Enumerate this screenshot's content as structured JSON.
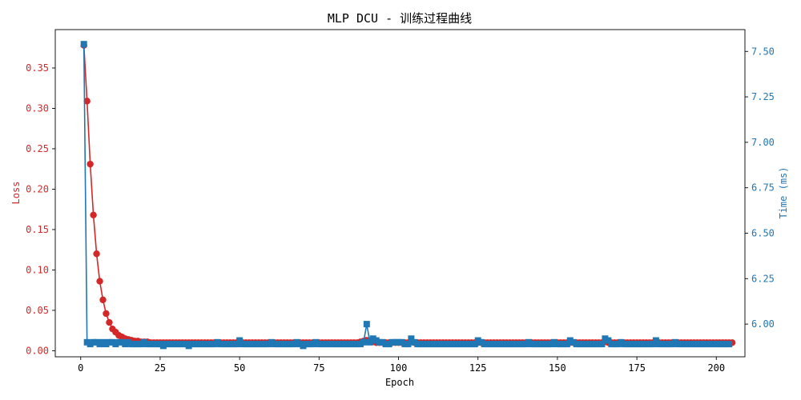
{
  "chart_data": {
    "type": "line",
    "title": "MLP DCU - 训练过程曲线",
    "xlabel": "Epoch",
    "xlim": [
      -8,
      209
    ],
    "xticks": [
      0,
      25,
      50,
      75,
      100,
      125,
      150,
      175,
      200
    ],
    "grid": false,
    "left_axis": {
      "label": "Loss",
      "color": "#d62728",
      "ylim": [
        -0.0075,
        0.3975
      ],
      "ticks": [
        0.0,
        0.05,
        0.1,
        0.15,
        0.2,
        0.25,
        0.3,
        0.35
      ],
      "tick_labels": [
        "0.00",
        "0.05",
        "0.10",
        "0.15",
        "0.20",
        "0.25",
        "0.30",
        "0.35"
      ]
    },
    "right_axis": {
      "label": "Time (ms)",
      "color": "#1f77b4",
      "ylim": [
        5.82,
        7.62
      ],
      "ticks": [
        6.0,
        6.25,
        6.5,
        6.75,
        7.0,
        7.25,
        7.5
      ],
      "tick_labels": [
        "6.00",
        "6.25",
        "6.50",
        "6.75",
        "7.00",
        "7.25",
        "7.50"
      ]
    },
    "series": [
      {
        "axis": "left",
        "color": "#d62728",
        "marker": "circle",
        "x_start": 1,
        "values": [
          0.378,
          0.309,
          0.231,
          0.168,
          0.12,
          0.086,
          0.063,
          0.046,
          0.035,
          0.027,
          0.023,
          0.019,
          0.017,
          0.015,
          0.014,
          0.013,
          0.012,
          0.012,
          0.011,
          0.011,
          0.011,
          0.01,
          0.01,
          0.01,
          0.01,
          0.01,
          0.01,
          0.01,
          0.01,
          0.01,
          0.01,
          0.01,
          0.01,
          0.01,
          0.01,
          0.01,
          0.01,
          0.01,
          0.01,
          0.01,
          0.01,
          0.01,
          0.01,
          0.01,
          0.01,
          0.01,
          0.01,
          0.01,
          0.01,
          0.01,
          0.01,
          0.01,
          0.01,
          0.01,
          0.01,
          0.01,
          0.01,
          0.01,
          0.01,
          0.01,
          0.01,
          0.01,
          0.01,
          0.01,
          0.01,
          0.01,
          0.01,
          0.01,
          0.01,
          0.01,
          0.01,
          0.01,
          0.01,
          0.01,
          0.01,
          0.01,
          0.01,
          0.01,
          0.01,
          0.01,
          0.01,
          0.01,
          0.01,
          0.01,
          0.01,
          0.01,
          0.01,
          0.011,
          0.012,
          0.013,
          0.012,
          0.011,
          0.01,
          0.01,
          0.01,
          0.01,
          0.01,
          0.01,
          0.01,
          0.01,
          0.01,
          0.01,
          0.01,
          0.011,
          0.01,
          0.01,
          0.01,
          0.01,
          0.01,
          0.01,
          0.01,
          0.01,
          0.01,
          0.01,
          0.01,
          0.01,
          0.01,
          0.01,
          0.01,
          0.01,
          0.01,
          0.01,
          0.01,
          0.01,
          0.01,
          0.01,
          0.01,
          0.01,
          0.01,
          0.01,
          0.01,
          0.01,
          0.01,
          0.01,
          0.01,
          0.01,
          0.01,
          0.01,
          0.01,
          0.01,
          0.01,
          0.01,
          0.01,
          0.01,
          0.01,
          0.01,
          0.01,
          0.01,
          0.01,
          0.01,
          0.01,
          0.01,
          0.01,
          0.01,
          0.01,
          0.01,
          0.01,
          0.01,
          0.01,
          0.01,
          0.01,
          0.01,
          0.01,
          0.01,
          0.011,
          0.01,
          0.01,
          0.01,
          0.01,
          0.01,
          0.01,
          0.01,
          0.01,
          0.01,
          0.01,
          0.01,
          0.01,
          0.01,
          0.01,
          0.01,
          0.01,
          0.01,
          0.01,
          0.01,
          0.01,
          0.01,
          0.01,
          0.01,
          0.01,
          0.01,
          0.01,
          0.01,
          0.01,
          0.01,
          0.01,
          0.01,
          0.01,
          0.01,
          0.01,
          0.01,
          0.01,
          0.01,
          0.01,
          0.01,
          0.01
        ]
      },
      {
        "axis": "right",
        "color": "#1f77b4",
        "marker": "square",
        "x_start": 1,
        "values": [
          7.54,
          5.9,
          5.89,
          5.9,
          5.9,
          5.89,
          5.9,
          5.89,
          5.9,
          5.9,
          5.89,
          5.9,
          5.9,
          5.89,
          5.9,
          5.89,
          5.89,
          5.89,
          5.89,
          5.9,
          5.89,
          5.89,
          5.89,
          5.89,
          5.89,
          5.88,
          5.89,
          5.89,
          5.89,
          5.89,
          5.89,
          5.89,
          5.89,
          5.88,
          5.89,
          5.89,
          5.89,
          5.89,
          5.89,
          5.89,
          5.89,
          5.89,
          5.9,
          5.89,
          5.89,
          5.89,
          5.89,
          5.89,
          5.89,
          5.91,
          5.89,
          5.89,
          5.89,
          5.89,
          5.89,
          5.89,
          5.89,
          5.89,
          5.89,
          5.9,
          5.89,
          5.89,
          5.89,
          5.89,
          5.89,
          5.89,
          5.89,
          5.9,
          5.89,
          5.88,
          5.89,
          5.89,
          5.89,
          5.9,
          5.89,
          5.89,
          5.89,
          5.89,
          5.89,
          5.89,
          5.89,
          5.89,
          5.89,
          5.89,
          5.89,
          5.89,
          5.89,
          5.89,
          5.9,
          6.0,
          5.9,
          5.92,
          5.91,
          5.9,
          5.9,
          5.89,
          5.89,
          5.9,
          5.9,
          5.9,
          5.9,
          5.89,
          5.89,
          5.92,
          5.9,
          5.89,
          5.89,
          5.89,
          5.89,
          5.89,
          5.89,
          5.89,
          5.89,
          5.89,
          5.89,
          5.89,
          5.89,
          5.89,
          5.89,
          5.89,
          5.89,
          5.89,
          5.89,
          5.89,
          5.91,
          5.9,
          5.89,
          5.89,
          5.89,
          5.89,
          5.89,
          5.89,
          5.89,
          5.89,
          5.89,
          5.89,
          5.89,
          5.89,
          5.89,
          5.89,
          5.9,
          5.89,
          5.89,
          5.89,
          5.89,
          5.89,
          5.89,
          5.89,
          5.9,
          5.89,
          5.89,
          5.89,
          5.89,
          5.91,
          5.9,
          5.89,
          5.89,
          5.89,
          5.89,
          5.89,
          5.89,
          5.89,
          5.89,
          5.89,
          5.92,
          5.91,
          5.89,
          5.89,
          5.89,
          5.9,
          5.89,
          5.89,
          5.89,
          5.89,
          5.89,
          5.89,
          5.89,
          5.89,
          5.89,
          5.89,
          5.91,
          5.89,
          5.89,
          5.89,
          5.89,
          5.89,
          5.9,
          5.89,
          5.89,
          5.89,
          5.89,
          5.89,
          5.89,
          5.89,
          5.89,
          5.89,
          5.89,
          5.89,
          5.89,
          5.89,
          5.89,
          5.89,
          5.89,
          5.89
        ]
      }
    ]
  }
}
